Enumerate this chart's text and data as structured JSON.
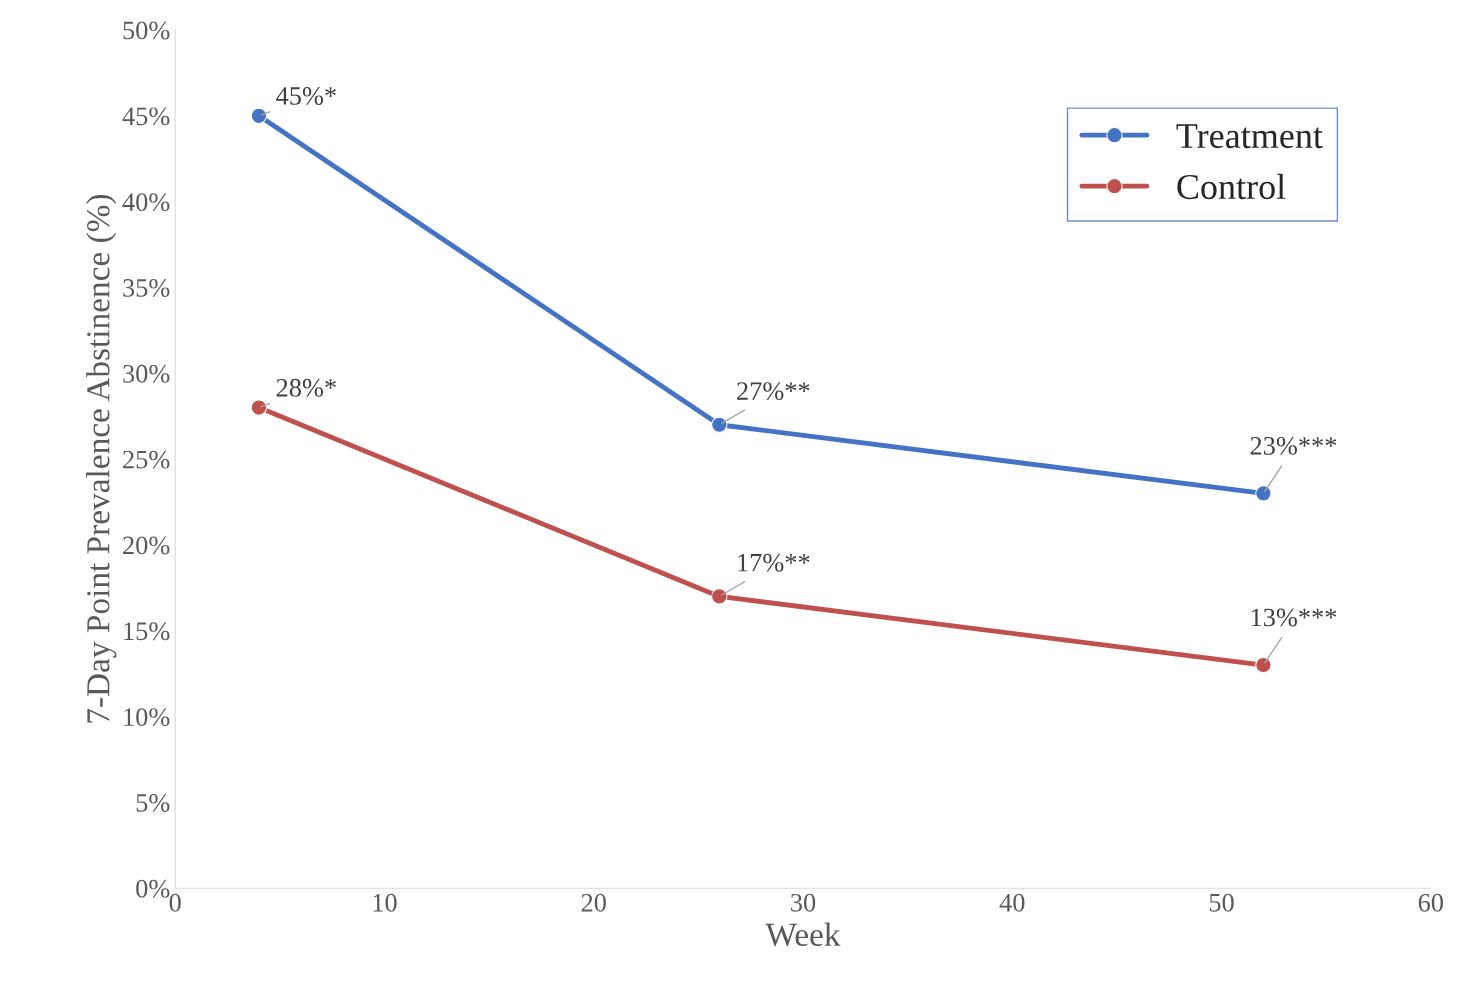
{
  "chart_data": {
    "type": "line",
    "xlabel": "Week",
    "ylabel": "7-Day Point Prevalence Abstinence (%)",
    "x": [
      4,
      26,
      52
    ],
    "series": [
      {
        "name": "Treatment",
        "color": "#4472c4",
        "values": [
          45,
          27,
          23
        ],
        "value_labels": [
          "45%*",
          "27%**",
          "23%***"
        ]
      },
      {
        "name": "Control",
        "color": "#c0504d",
        "values": [
          28,
          17,
          13
        ],
        "value_labels": [
          "28%*",
          "17%**",
          "13%***"
        ]
      }
    ],
    "xlim": [
      0,
      60
    ],
    "xticks": [
      0,
      10,
      20,
      30,
      40,
      50,
      60
    ],
    "ylim": [
      0,
      50
    ],
    "yticks": [
      {
        "value": 0,
        "label": "0%"
      },
      {
        "value": 5,
        "label": "5%"
      },
      {
        "value": 10,
        "label": "10%"
      },
      {
        "value": 15,
        "label": "15%"
      },
      {
        "value": 20,
        "label": "20%"
      },
      {
        "value": 25,
        "label": "25%"
      },
      {
        "value": 30,
        "label": "30%"
      },
      {
        "value": 35,
        "label": "35%"
      },
      {
        "value": 40,
        "label": "40%"
      },
      {
        "value": 45,
        "label": "45%"
      },
      {
        "value": 50,
        "label": "50%"
      }
    ],
    "grid": false,
    "legend": "top right",
    "marker": "circle",
    "line_style": "solid"
  }
}
